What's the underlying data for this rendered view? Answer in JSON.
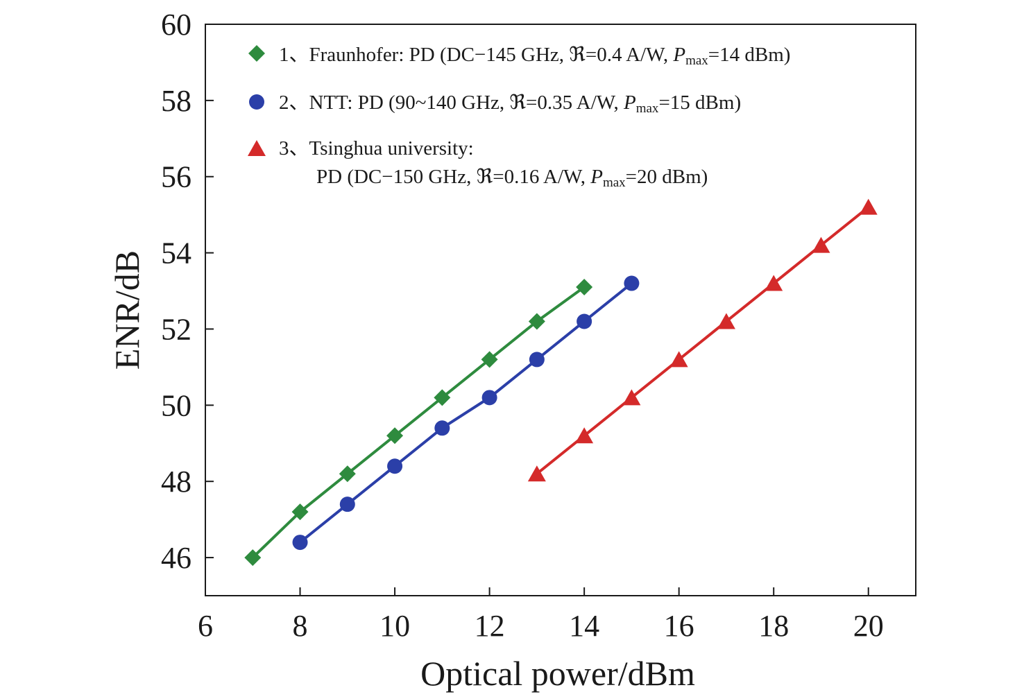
{
  "chart_data": {
    "type": "line",
    "title": "",
    "xlabel": "Optical power/dBm",
    "ylabel": "ENR/dB",
    "xlim": [
      6,
      21
    ],
    "ylim": [
      45,
      60
    ],
    "xticks": [
      6,
      8,
      10,
      12,
      14,
      16,
      18,
      20
    ],
    "yticks": [
      46,
      48,
      50,
      52,
      54,
      56,
      58,
      60
    ],
    "grid": false,
    "legend_position": "top-left",
    "series": [
      {
        "name": "Fraunhofer",
        "marker": "diamond",
        "color": "#2e8b3e",
        "legend": {
          "index": "1",
          "prefix": "、Fraunhofer: PD (DC−145 GHz, ",
          "resp_symbol": "ℜ",
          "resp_value": "=0.4 A/W, ",
          "p_symbol": "P",
          "p_sub": "max",
          "p_value": "=14 dBm)"
        },
        "x": [
          7,
          8,
          9,
          10,
          11,
          12,
          13,
          14
        ],
        "y": [
          46.0,
          47.2,
          48.2,
          49.2,
          50.2,
          51.2,
          52.2,
          53.1
        ]
      },
      {
        "name": "NTT",
        "marker": "circle",
        "color": "#2b3fa8",
        "legend": {
          "index": "2",
          "prefix": "、NTT: PD (90~140 GHz, ",
          "resp_symbol": "ℜ",
          "resp_value": "=0.35 A/W, ",
          "p_symbol": "P",
          "p_sub": "max",
          "p_value": "=15 dBm)"
        },
        "x": [
          8,
          9,
          10,
          11,
          12,
          13,
          14,
          15
        ],
        "y": [
          46.4,
          47.4,
          48.4,
          49.4,
          50.2,
          51.2,
          52.2,
          53.2
        ]
      },
      {
        "name": "Tsinghua university",
        "marker": "triangle",
        "color": "#d42a2a",
        "legend": {
          "index": "3",
          "line1": "、Tsinghua university:",
          "prefix": "PD (DC−150 GHz, ",
          "resp_symbol": "ℜ",
          "resp_value": "=0.16 A/W, ",
          "p_symbol": "P",
          "p_sub": "max",
          "p_value": "=20 dBm)"
        },
        "x": [
          13,
          14,
          15,
          16,
          17,
          18,
          19,
          20
        ],
        "y": [
          48.2,
          49.2,
          50.2,
          51.2,
          52.2,
          53.2,
          54.2,
          55.2
        ]
      }
    ]
  }
}
